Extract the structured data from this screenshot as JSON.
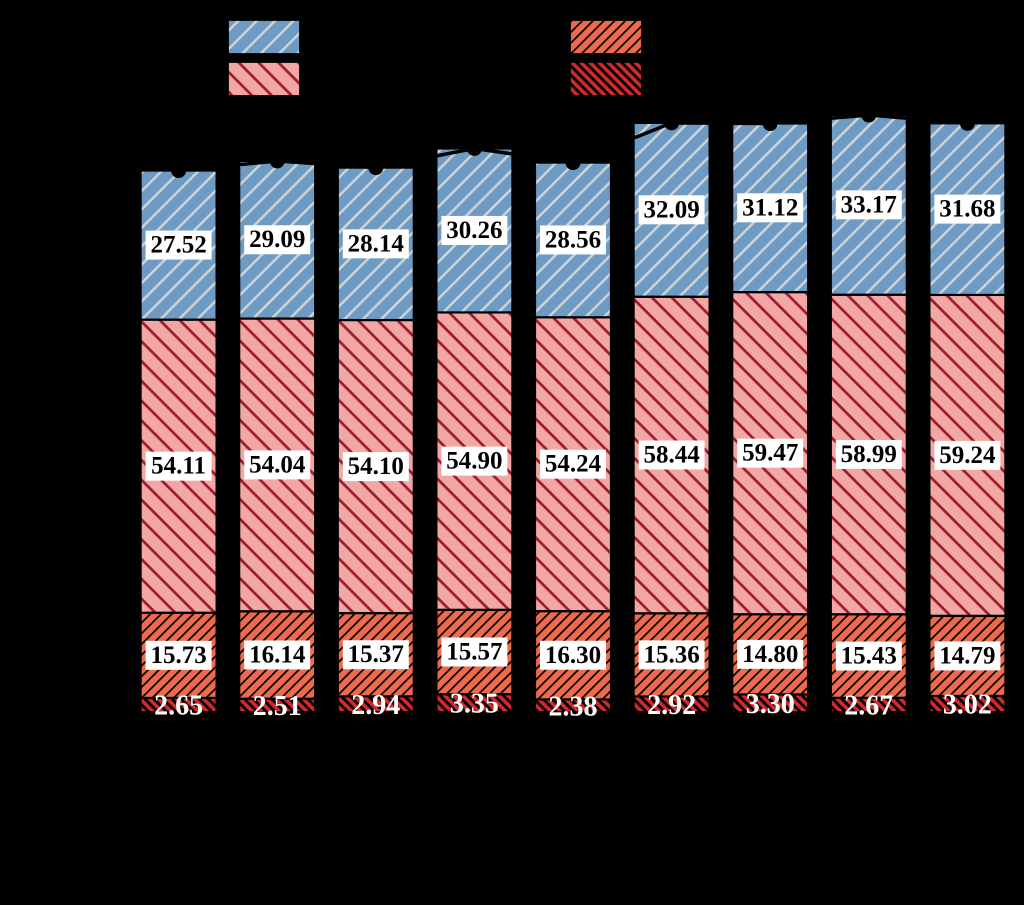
{
  "background_color": "#000000",
  "chart_data": {
    "type": "bar",
    "stacked": true,
    "orientation": "vertical",
    "n_bars": 9,
    "categories": [
      "",
      "",
      "",
      "",
      "",
      "",
      "",
      "",
      ""
    ],
    "axis_text_visible": false,
    "grid": false,
    "series": [
      {
        "name": "segment-darkred",
        "fill": "#D2292B",
        "hatch": "\\",
        "hatch_color": "#000000",
        "values": [
          2.65,
          2.51,
          2.94,
          3.35,
          2.38,
          2.92,
          3.3,
          2.67,
          3.02
        ],
        "labels": [
          "2.65",
          "2.51",
          "2.94",
          "3.35",
          "2.38",
          "2.92",
          "3.30",
          "2.67",
          "3.02"
        ],
        "label_style": "plain-white-text"
      },
      {
        "name": "segment-orange",
        "fill": "#EE6A4D",
        "hatch": "/",
        "hatch_color": "#000000",
        "values": [
          15.73,
          16.14,
          15.37,
          15.57,
          16.3,
          15.36,
          14.8,
          15.43,
          14.79
        ],
        "labels": [
          "15.73",
          "16.14",
          "15.37",
          "15.57",
          "16.30",
          "15.36",
          "14.80",
          "15.43",
          "14.79"
        ],
        "label_style": "white-box-black-text"
      },
      {
        "name": "segment-pink",
        "fill": "#F1A8A4",
        "hatch": "\\",
        "hatch_color": "#9E1B2D",
        "values": [
          54.11,
          54.04,
          54.1,
          54.9,
          54.24,
          58.44,
          59.47,
          58.99,
          59.24
        ],
        "labels": [
          "54.11",
          "54.04",
          "54.10",
          "54.90",
          "54.24",
          "58.44",
          "59.47",
          "58.99",
          "59.24"
        ],
        "label_style": "white-box-black-text"
      },
      {
        "name": "segment-blue",
        "fill": "#6D9BC3",
        "hatch": "/",
        "hatch_color": "#CDD3D6",
        "values": [
          27.52,
          29.09,
          28.14,
          30.26,
          28.56,
          32.09,
          31.12,
          33.17,
          31.68
        ],
        "labels": [
          "27.52",
          "29.09",
          "28.14",
          "30.26",
          "28.56",
          "32.09",
          "31.12",
          "33.17",
          "31.68"
        ],
        "label_style": "white-box-black-text"
      }
    ],
    "bar_edge_color": "#000000",
    "segment_label_text_color": "#000000",
    "bottom_label_text_color": "#FFFFFF",
    "label_box_color": "#FFFFFF",
    "total_line": {
      "visible": true,
      "color": "#000000",
      "marker": "circle",
      "marker_color": "#000000"
    }
  },
  "legend": {
    "frame_visible": false,
    "labels_visible": false,
    "columns": [
      {
        "entries": [
          "segment-blue",
          "segment-pink"
        ]
      },
      {
        "entries": [
          "segment-orange",
          "segment-darkred"
        ]
      }
    ]
  }
}
